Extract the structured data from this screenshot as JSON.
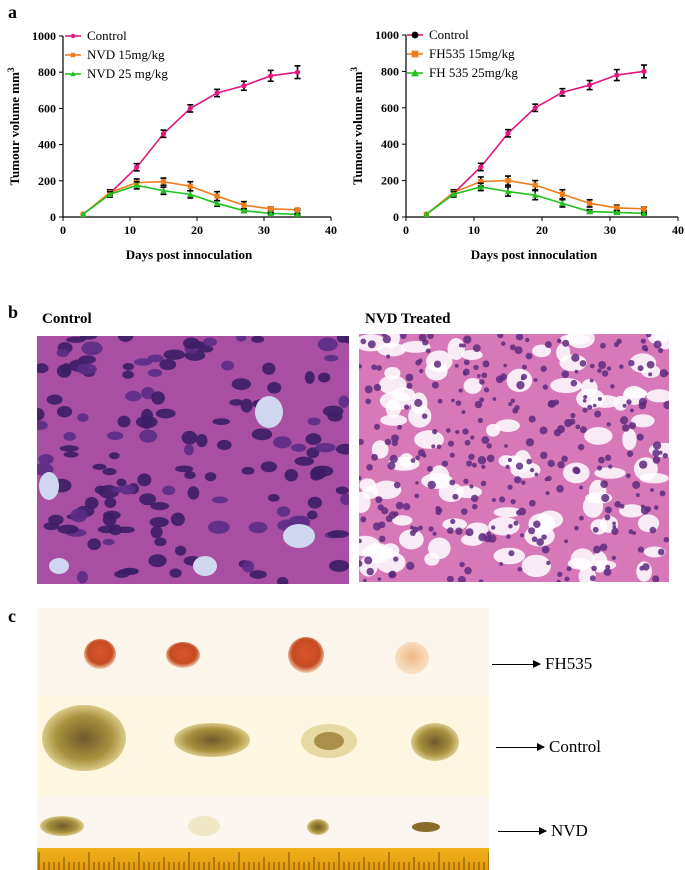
{
  "panels": {
    "a": "a",
    "b": "b",
    "c": "c"
  },
  "chart_data": [
    {
      "type": "line",
      "ylabel": "Tumour volume mm",
      "ylabel_sup": "3",
      "xlabel": "Days post innoculation",
      "xlim": [
        0,
        40
      ],
      "ylim": [
        0,
        1000
      ],
      "xticks": [
        0,
        10,
        20,
        30,
        40
      ],
      "yticks": [
        0,
        200,
        400,
        600,
        800,
        1000
      ],
      "x": [
        3,
        7,
        11,
        15,
        19,
        23,
        27,
        31,
        35
      ],
      "series": [
        {
          "name": "Control",
          "color": "#e0177f",
          "marker": "circle",
          "values": [
            15,
            130,
            275,
            460,
            600,
            685,
            725,
            780,
            800
          ],
          "errors": [
            0,
            15,
            20,
            20,
            20,
            20,
            25,
            30,
            35
          ]
        },
        {
          "name": "NVD 15mg/kg",
          "color": "#f07c1c",
          "marker": "square",
          "values": [
            15,
            135,
            190,
            195,
            170,
            115,
            65,
            45,
            40
          ],
          "errors": [
            0,
            15,
            20,
            20,
            25,
            25,
            20,
            10,
            5
          ]
        },
        {
          "name": "NVD 25 mg/kg",
          "color": "#22c21e",
          "marker": "triangle",
          "values": [
            15,
            125,
            175,
            145,
            125,
            75,
            35,
            20,
            15
          ],
          "errors": [
            0,
            15,
            20,
            20,
            20,
            15,
            10,
            5,
            5
          ]
        }
      ]
    },
    {
      "type": "line",
      "ylabel": "Tumour volume mm",
      "ylabel_sup": "3",
      "xlabel": "Days post innoculation",
      "xlim": [
        0,
        40
      ],
      "ylim": [
        0,
        1000
      ],
      "xticks": [
        0,
        10,
        20,
        30,
        40
      ],
      "yticks": [
        0,
        200,
        400,
        600,
        800,
        1000
      ],
      "x": [
        3,
        7,
        11,
        15,
        19,
        23,
        27,
        31,
        35
      ],
      "series": [
        {
          "name": "Control",
          "color": "#e0177f",
          "marker": "circle",
          "values": [
            15,
            130,
            275,
            460,
            600,
            685,
            725,
            780,
            800
          ],
          "errors": [
            0,
            15,
            20,
            20,
            20,
            20,
            25,
            30,
            35
          ]
        },
        {
          "name": "FH535  15mg/kg",
          "color": "#f07c1c",
          "marker": "square",
          "values": [
            15,
            135,
            195,
            200,
            175,
            125,
            75,
            50,
            45
          ],
          "errors": [
            0,
            15,
            25,
            25,
            25,
            25,
            20,
            15,
            10
          ]
        },
        {
          "name": "FH 535 25mg/kg",
          "color": "#22c21e",
          "marker": "triangle",
          "values": [
            15,
            125,
            165,
            140,
            120,
            75,
            30,
            25,
            20
          ],
          "errors": [
            0,
            15,
            20,
            25,
            25,
            20,
            10,
            10,
            5
          ]
        }
      ]
    }
  ],
  "histology": {
    "control_label": "Control",
    "treated_label": "NVD Treated"
  },
  "tumour_photo": {
    "rows": [
      "FH535",
      "Control",
      "NVD"
    ]
  }
}
